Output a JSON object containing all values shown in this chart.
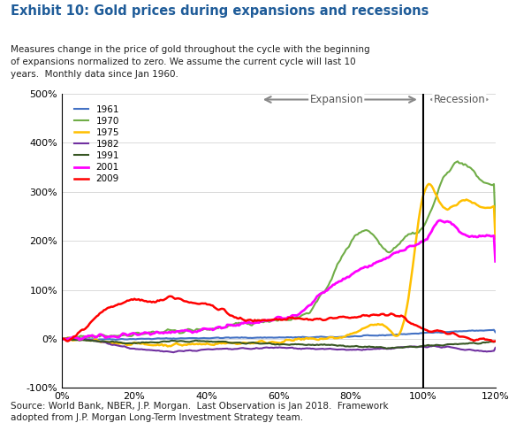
{
  "title": "Exhibit 10: Gold prices during expansions and recessions",
  "subtitle": "Measures change in the price of gold throughout the cycle with the beginning\nof expansions normalized to zero. We assume the current cycle will last 10\nyears.  Monthly data since Jan 1960.",
  "footer": "Source: World Bank, NBER, J.P. Morgan.  Last Observation is Jan 2018.  Framework\nadopted from J.P. Morgan Long-Term Investment Strategy team.",
  "title_color": "#1F5C99",
  "subtitle_color": "#222222",
  "footer_color": "#222222",
  "vline_x": 100,
  "expansion_label": "Expansion",
  "recession_label": "Recession",
  "ylim": [
    -100,
    500
  ],
  "xlim": [
    0,
    120
  ],
  "xticks": [
    0,
    20,
    40,
    60,
    80,
    100,
    120
  ],
  "yticks": [
    -100,
    0,
    100,
    200,
    300,
    400,
    500
  ],
  "series": {
    "1961": {
      "color": "#4472C4",
      "lw": 1.5
    },
    "1970": {
      "color": "#70AD47",
      "lw": 1.5
    },
    "1975": {
      "color": "#FFC000",
      "lw": 1.8
    },
    "1982": {
      "color": "#7030A0",
      "lw": 1.5
    },
    "1991": {
      "color": "#375623",
      "lw": 1.5
    },
    "2001": {
      "color": "#FF00FF",
      "lw": 2.0
    },
    "2009": {
      "color": "#FF0000",
      "lw": 1.8
    }
  }
}
